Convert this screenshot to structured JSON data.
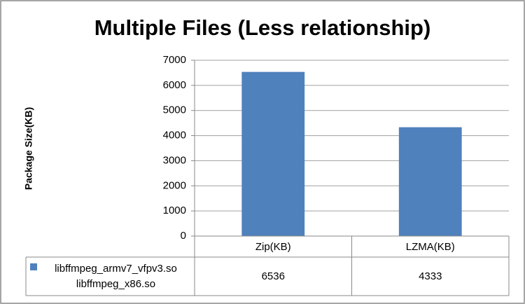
{
  "chart_data": {
    "type": "bar",
    "title": "Multiple Files (Less relationship)",
    "y_label": "Package Size(KB)",
    "categories": [
      "Zip(KB)",
      "LZMA(KB)"
    ],
    "series": [
      {
        "name": "libffmpeg_armv7_vfpv3.so\nlibffmpeg_x86.so",
        "color": "#4f81bd",
        "values": [
          6536,
          4333
        ]
      }
    ],
    "ylim": [
      0,
      7000
    ],
    "yticks": [
      0,
      1000,
      2000,
      3000,
      4000,
      5000,
      6000,
      7000
    ],
    "grid": true,
    "data_table": true
  }
}
